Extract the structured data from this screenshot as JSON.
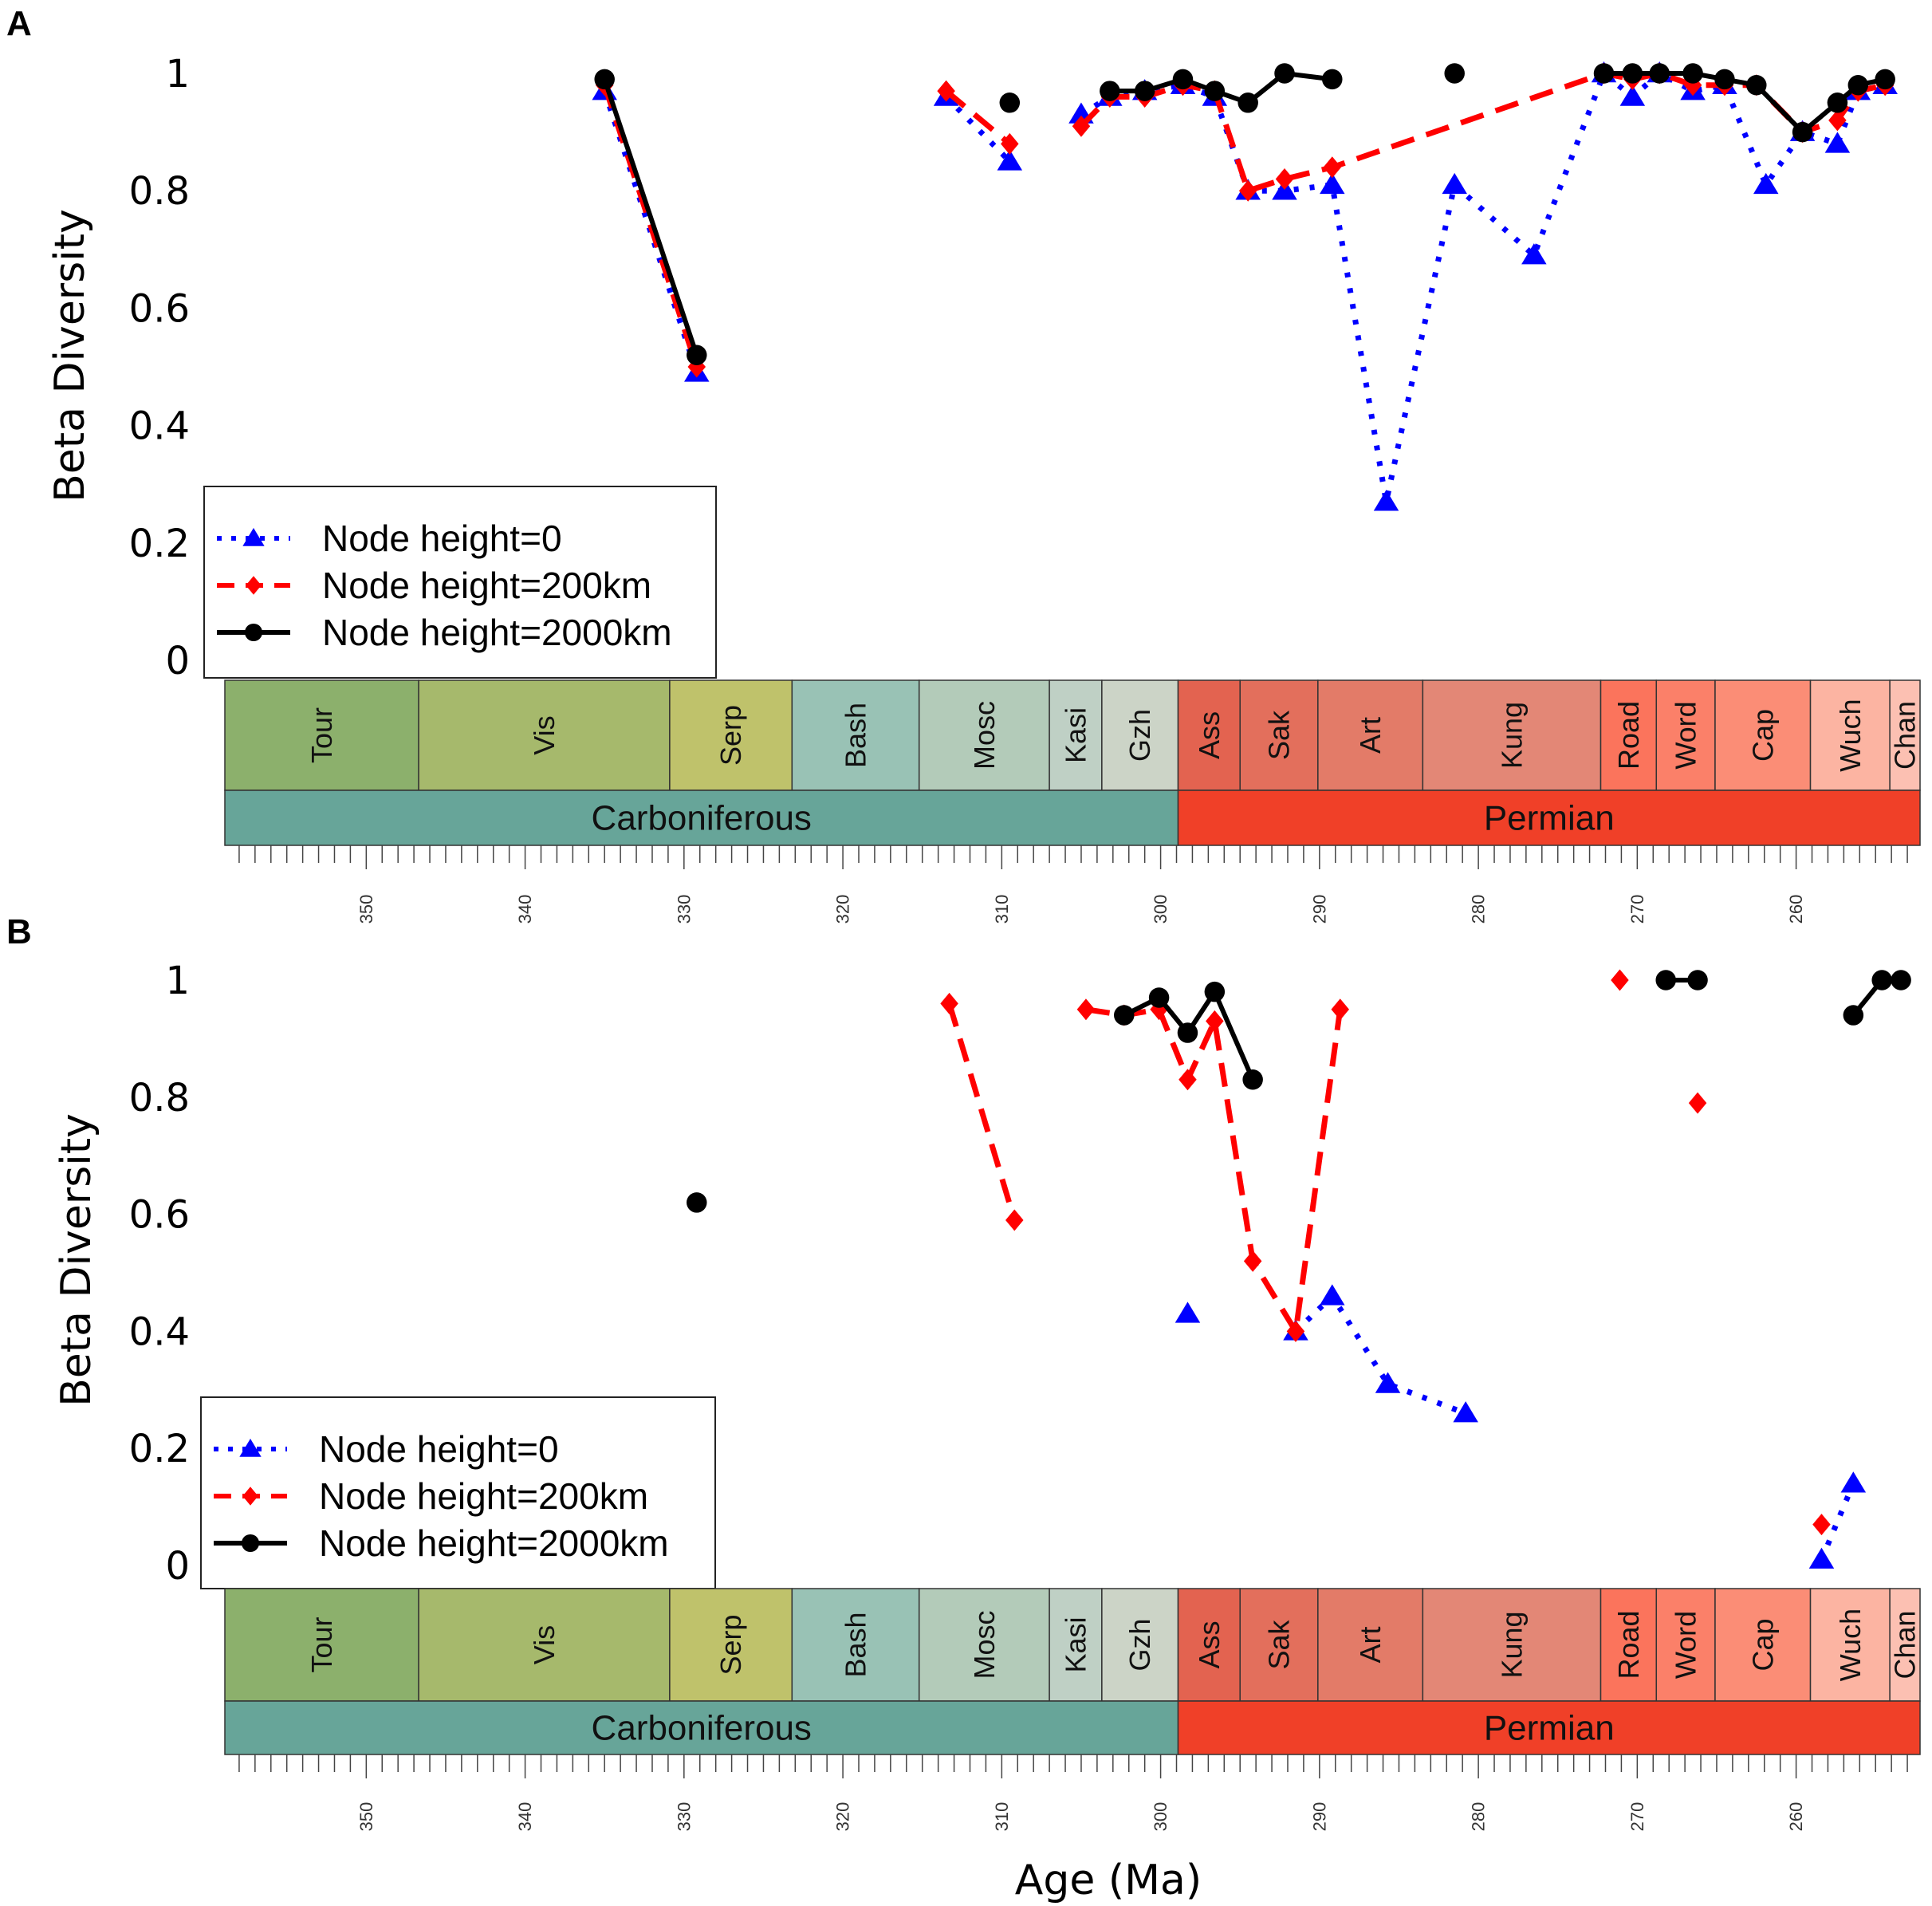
{
  "figure": {
    "x_axis_title": "Age (Ma)",
    "y_axis_title": "Beta Diversity",
    "y_tick_labels": [
      "0",
      "0.2",
      "0.4",
      "0.6",
      "0.8",
      "1"
    ],
    "age_tick_labels": [
      "350",
      "340",
      "330",
      "320",
      "310",
      "300",
      "290",
      "280",
      "270",
      "260"
    ],
    "age_tick_values": [
      350,
      340,
      330,
      320,
      310,
      300,
      290,
      280,
      270,
      260
    ],
    "age_range": [
      359,
      252
    ],
    "stages": [
      {
        "name": "Tour",
        "start": 358.9,
        "end": 346.7,
        "color": "#8cb06c"
      },
      {
        "name": "Vis",
        "start": 346.7,
        "end": 330.9,
        "color": "#a6b96c"
      },
      {
        "name": "Serp",
        "start": 330.9,
        "end": 323.2,
        "color": "#bfc26b"
      },
      {
        "name": "Bash",
        "start": 323.2,
        "end": 315.2,
        "color": "#99c2b5"
      },
      {
        "name": "Mosc",
        "start": 315.2,
        "end": 307.0,
        "color": "#b3cbb9"
      },
      {
        "name": "Kasi",
        "start": 307.0,
        "end": 303.7,
        "color": "#bfd0c5"
      },
      {
        "name": "Gzh",
        "start": 303.7,
        "end": 298.9,
        "color": "#ccd4c7"
      },
      {
        "name": "Ass",
        "start": 298.9,
        "end": 295.0,
        "color": "#e36350"
      },
      {
        "name": "Sak",
        "start": 295.0,
        "end": 290.1,
        "color": "#e36f5c"
      },
      {
        "name": "Art",
        "start": 290.1,
        "end": 283.5,
        "color": "#e37b68"
      },
      {
        "name": "Kung",
        "start": 283.5,
        "end": 272.3,
        "color": "#e38776"
      },
      {
        "name": "Road",
        "start": 272.3,
        "end": 268.8,
        "color": "#fb745c"
      },
      {
        "name": "Word",
        "start": 268.8,
        "end": 265.1,
        "color": "#fb8069"
      },
      {
        "name": "Cap",
        "start": 265.1,
        "end": 259.1,
        "color": "#fb8d76"
      },
      {
        "name": "Wuch",
        "start": 259.1,
        "end": 254.1,
        "color": "#fcb4a2"
      },
      {
        "name": "Chan",
        "start": 254.1,
        "end": 252.2,
        "color": "#fcc0b2"
      }
    ],
    "periods": [
      {
        "name": "Carboniferous",
        "start": 358.9,
        "end": 298.9,
        "color": "#67a599"
      },
      {
        "name": "Permian",
        "start": 298.9,
        "end": 252.2,
        "color": "#f04028"
      }
    ],
    "legend": [
      {
        "label": "Node height=0",
        "color": "#0000ff",
        "marker": "triangle",
        "dash": "dotted"
      },
      {
        "label": "Node height=200km",
        "color": "#ff0000",
        "marker": "diamond",
        "dash": "dashed"
      },
      {
        "label": "Node height=2000km",
        "color": "#000000",
        "marker": "circle",
        "dash": "solid"
      }
    ]
  },
  "chart_data": [
    {
      "panel": "A",
      "type": "line",
      "title": "",
      "xlabel": "",
      "ylabel": "Beta Diversity",
      "ylim": [
        0,
        1
      ],
      "series": [
        {
          "name": "Node height=0",
          "segments": [
            [
              [
                335,
                0.97
              ],
              [
                329.2,
                0.49
              ]
            ],
            [
              [
                313.5,
                0.96
              ],
              [
                309.5,
                0.85
              ]
            ],
            [
              [
                305,
                0.93
              ],
              [
                303.2,
                0.96
              ],
              [
                301,
                0.97
              ],
              [
                298.6,
                0.98
              ],
              [
                296.6,
                0.96
              ],
              [
                294.5,
                0.8
              ],
              [
                292.2,
                0.8
              ],
              [
                289.2,
                0.81
              ],
              [
                285.8,
                0.27
              ],
              [
                281.5,
                0.81
              ],
              [
                276.5,
                0.69
              ],
              [
                272.1,
                1.0
              ],
              [
                270.3,
                0.96
              ],
              [
                268.6,
                1.0
              ],
              [
                266.5,
                0.97
              ],
              [
                264.5,
                0.98
              ],
              [
                261.9,
                0.81
              ],
              [
                259.6,
                0.9
              ],
              [
                257.4,
                0.88
              ],
              [
                256.1,
                0.97
              ],
              [
                254.4,
                0.98
              ]
            ]
          ]
        },
        {
          "name": "Node height=200km",
          "segments": [
            [
              [
                335,
                0.98
              ],
              [
                329.2,
                0.5
              ]
            ],
            [
              [
                313.5,
                0.97
              ],
              [
                309.5,
                0.88
              ]
            ],
            [
              [
                305,
                0.91
              ],
              [
                303.2,
                0.96
              ],
              [
                301,
                0.96
              ],
              [
                298.6,
                0.98
              ],
              [
                296.6,
                0.97
              ],
              [
                294.5,
                0.8
              ],
              [
                292.2,
                0.82
              ],
              [
                289.2,
                0.84
              ],
              [
                272.1,
                1.0
              ],
              [
                270.3,
                0.99
              ],
              [
                268.6,
                1.0
              ],
              [
                266.5,
                0.98
              ],
              [
                264.5,
                0.98
              ],
              [
                262.5,
                0.98
              ],
              [
                259.6,
                0.9
              ],
              [
                257.4,
                0.92
              ],
              [
                256.1,
                0.97
              ],
              [
                254.4,
                0.98
              ]
            ]
          ]
        },
        {
          "name": "Node height=2000km",
          "segments": [
            [
              [
                335,
                0.99
              ],
              [
                329.2,
                0.52
              ]
            ],
            [
              [
                309.5,
                0.95
              ]
            ],
            [
              [
                303.2,
                0.97
              ],
              [
                301,
                0.97
              ],
              [
                298.6,
                0.99
              ],
              [
                296.6,
                0.97
              ],
              [
                294.5,
                0.95
              ],
              [
                292.2,
                1.0
              ],
              [
                289.2,
                0.99
              ]
            ],
            [
              [
                281.5,
                1.0
              ]
            ],
            [
              [
                272.1,
                1.0
              ],
              [
                270.3,
                1.0
              ],
              [
                268.6,
                1.0
              ],
              [
                266.5,
                1.0
              ],
              [
                264.5,
                0.99
              ],
              [
                262.5,
                0.98
              ],
              [
                259.6,
                0.9
              ],
              [
                257.4,
                0.95
              ],
              [
                256.1,
                0.98
              ],
              [
                254.4,
                0.99
              ]
            ]
          ]
        }
      ]
    },
    {
      "panel": "B",
      "type": "line",
      "title": "",
      "xlabel": "Age (Ma)",
      "ylabel": "Beta Diversity",
      "ylim": [
        0,
        1
      ],
      "series": [
        {
          "name": "Node height=0",
          "segments": [
            [
              [
                298.3,
                0.43
              ]
            ],
            [
              [
                291.5,
                0.4
              ],
              [
                289.2,
                0.46
              ],
              [
                285.7,
                0.31
              ],
              [
                280.8,
                0.26
              ]
            ],
            [
              [
                258.4,
                0.01
              ],
              [
                256.4,
                0.14
              ]
            ]
          ]
        },
        {
          "name": "Node height=200km",
          "segments": [
            [
              [
                313.3,
                0.96
              ],
              [
                309.2,
                0.59
              ]
            ],
            [
              [
                304.7,
                0.95
              ],
              [
                302.3,
                0.94
              ],
              [
                300.1,
                0.95
              ],
              [
                298.3,
                0.83
              ],
              [
                296.6,
                0.93
              ],
              [
                294.2,
                0.52
              ],
              [
                291.5,
                0.4
              ],
              [
                288.7,
                0.95
              ]
            ],
            [
              [
                271.1,
                1.0
              ]
            ],
            [
              [
                266.2,
                0.79
              ]
            ],
            [
              [
                258.4,
                0.07
              ]
            ]
          ]
        },
        {
          "name": "Node height=2000km",
          "segments": [
            [
              [
                329.2,
                0.62
              ]
            ],
            [
              [
                302.3,
                0.94
              ],
              [
                300.1,
                0.97
              ],
              [
                298.3,
                0.91
              ],
              [
                296.6,
                0.98
              ],
              [
                294.2,
                0.83
              ]
            ],
            [
              [
                268.2,
                1.0
              ],
              [
                266.2,
                1.0
              ]
            ],
            [
              [
                256.4,
                0.94
              ],
              [
                254.6,
                1.0
              ],
              [
                253.4,
                1.0
              ]
            ]
          ]
        }
      ]
    }
  ]
}
